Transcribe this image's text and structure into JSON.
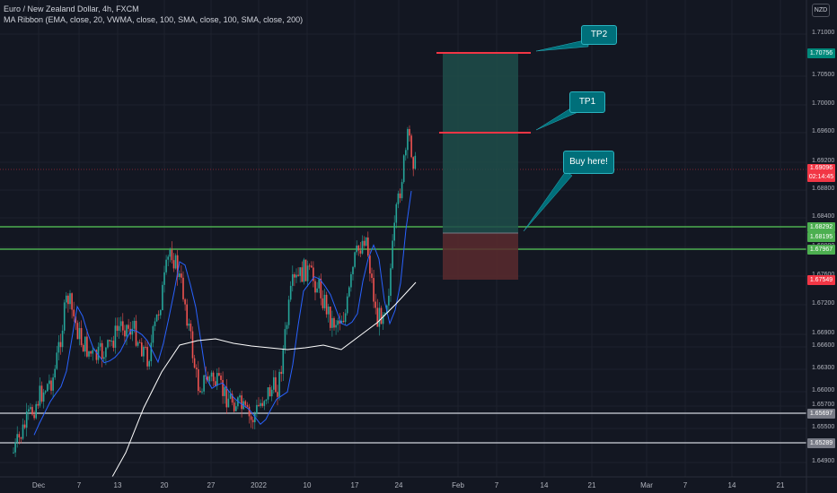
{
  "legend": {
    "title": "Euro / New Zealand Dollar, 4h, FXCM",
    "indicator": "MA Ribbon (EMA, close, 20, VWMA, close, 100, SMA, close, 100, SMA, close, 200)"
  },
  "currency_button": "NZD",
  "price_axis": {
    "ticks": [
      "1.71000",
      "1.70500",
      "1.70000",
      "1.69600",
      "1.69200",
      "1.68800",
      "1.68400",
      "1.68000",
      "1.67600",
      "1.67200",
      "1.66900",
      "1.66600",
      "1.66300",
      "1.66000",
      "1.65700",
      "1.65500",
      "1.65200",
      "1.64900"
    ]
  },
  "price_tags": {
    "tp2": {
      "value": "1.70756",
      "color": "#00897b"
    },
    "current": {
      "value": "1.69096",
      "timer": "02:14:45",
      "color": "#f23645"
    },
    "green_upper": {
      "value": "1.68292",
      "color": "#4caf50"
    },
    "entry": {
      "value": "1.68195",
      "color": "#4caf50"
    },
    "green_lower": {
      "value": "1.67967",
      "color": "#4caf50"
    },
    "stop": {
      "value": "1.67549",
      "color": "#f23645"
    },
    "grey_upper": {
      "value": "1.65697",
      "color": "#787b86"
    },
    "grey_lower": {
      "value": "1.65289",
      "color": "#787b86"
    }
  },
  "time_axis": [
    "Dec",
    "7",
    "13",
    "20",
    "27",
    "2022",
    "10",
    "17",
    "24",
    "Feb",
    "7",
    "14",
    "21",
    "Mar",
    "7",
    "14",
    "21"
  ],
  "callouts": {
    "tp2": "TP2",
    "tp1": "TP1",
    "buy": "Buy here!"
  },
  "colors": {
    "up": "#26a69a",
    "down": "#ef5350",
    "green_line": "#4caf50",
    "grey_line": "#b2b5be",
    "target_line": "#f23645",
    "profit_zone": "#1f4d4a",
    "loss_zone": "#5a2a2e",
    "ema": "#2962ff",
    "sma200": "#ffffff"
  }
}
